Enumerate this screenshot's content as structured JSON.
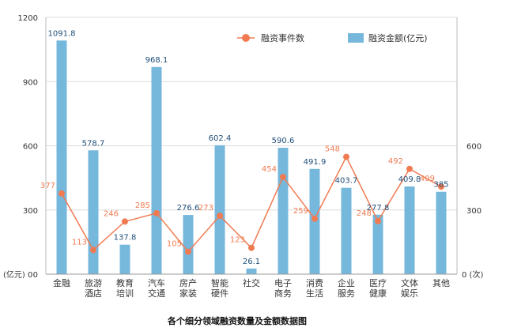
{
  "chart_data": {
    "type": "bar",
    "title": "各个细分领域融资数量及金额数据图",
    "categories": [
      [
        "金融"
      ],
      [
        "旅游",
        "酒店"
      ],
      [
        "教育",
        "培训"
      ],
      [
        "汽车",
        "交通"
      ],
      [
        "房产",
        "家装"
      ],
      [
        "智能",
        "硬件"
      ],
      [
        "社交"
      ],
      [
        "电子",
        "商务"
      ],
      [
        "消费",
        "生活"
      ],
      [
        "企业",
        "服务"
      ],
      [
        "医疗",
        "健康"
      ],
      [
        "文体",
        "娱乐"
      ],
      [
        "其他"
      ]
    ],
    "series": [
      {
        "name": "融资金额(亿元)",
        "type": "bar",
        "axis": "left",
        "color": "#76b7dc",
        "values": [
          1091.8,
          578.7,
          137.8,
          968.1,
          276.6,
          602.4,
          26.1,
          590.6,
          491.9,
          403.7,
          277.8,
          409.8,
          385
        ]
      },
      {
        "name": "融资事件数",
        "type": "line",
        "axis": "right",
        "color": "#f07b52",
        "values": [
          377,
          113,
          246,
          285,
          105,
          273,
          123,
          454,
          259,
          548,
          248,
          492,
          409
        ]
      }
    ],
    "left_axis": {
      "unit": "(亿元)",
      "ticks": [
        0,
        300,
        600,
        900,
        1200
      ],
      "range": [
        0,
        1200
      ]
    },
    "right_axis": {
      "unit": "(次)",
      "ticks": [
        0,
        300,
        600
      ],
      "range": [
        0,
        1200
      ]
    },
    "legend": {
      "position": "top-right"
    }
  }
}
